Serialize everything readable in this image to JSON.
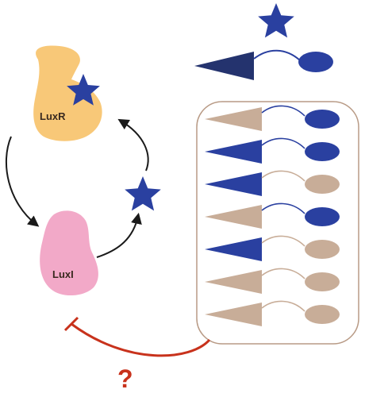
{
  "labels": {
    "luxr": "LuxR",
    "luxi": "LuxI",
    "question": "?"
  },
  "colors": {
    "luxr_fill": "#f8c878",
    "luxi_fill": "#f2a9c8",
    "blue": "#2a40a0",
    "blue_dark": "#24336e",
    "tan": "#c8ad98",
    "box_stroke": "#b89a85",
    "inhibit_red": "#c8321c",
    "arrow": "#1a1a1a"
  },
  "icons": {
    "signal": "star-icon",
    "lone_molecule": "triangle-tail-oval",
    "cells": "triangle-tail-oval"
  },
  "cell_rows": [
    {
      "triangle": "tan",
      "oval": "blue"
    },
    {
      "triangle": "blue",
      "oval": "blue"
    },
    {
      "triangle": "blue",
      "oval": "tan"
    },
    {
      "triangle": "tan",
      "oval": "blue"
    },
    {
      "triangle": "blue",
      "oval": "tan"
    },
    {
      "triangle": "tan",
      "oval": "tan"
    },
    {
      "triangle": "tan",
      "oval": "tan"
    }
  ]
}
